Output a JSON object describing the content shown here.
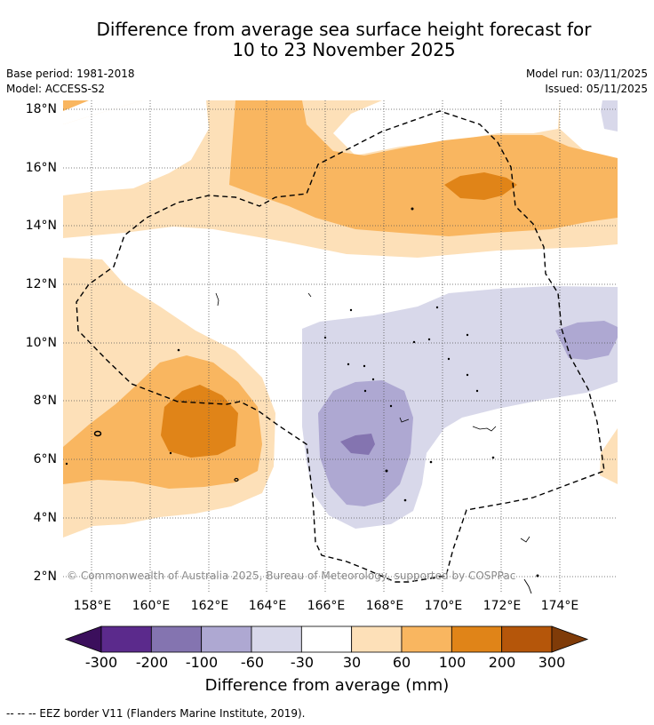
{
  "title": {
    "line1": "Difference from average sea surface height forecast for",
    "line2": "10 to 23 November 2025"
  },
  "meta": {
    "base_period": "Base period: 1981-2018",
    "model": "Model: ACCESS-S2",
    "model_run": "Model run: 03/11/2025",
    "issued": "Issued: 05/11/2025"
  },
  "map": {
    "latitude_labels": [
      "18°N",
      "16°N",
      "14°N",
      "12°N",
      "10°N",
      "8°N",
      "6°N",
      "4°N",
      "2°N"
    ],
    "longitude_labels": [
      "158°E",
      "160°E",
      "162°E",
      "164°E",
      "166°E",
      "168°E",
      "170°E",
      "172°E",
      "174°E"
    ],
    "copyright": "© Commonwealth of Australia 2025, Bureau of Meteorology, supported by COSPPac"
  },
  "colorbar": {
    "ticks": [
      "-300",
      "-200",
      "-100",
      "-60",
      "-30",
      "30",
      "60",
      "100",
      "200",
      "300"
    ],
    "colors": [
      "#5b2a8c",
      "#8474b0",
      "#aea8d2",
      "#d8d8ea",
      "#ffffff",
      "#fde0b8",
      "#f9b660",
      "#e08418",
      "#b5560a"
    ],
    "min_extend_color": "#3b0f5c",
    "max_extend_color": "#7f3b08",
    "title": "Difference from average (mm)"
  },
  "footnote": "--  --  -- EEZ border V11 (Flanders Marine Institute, 2019)."
}
